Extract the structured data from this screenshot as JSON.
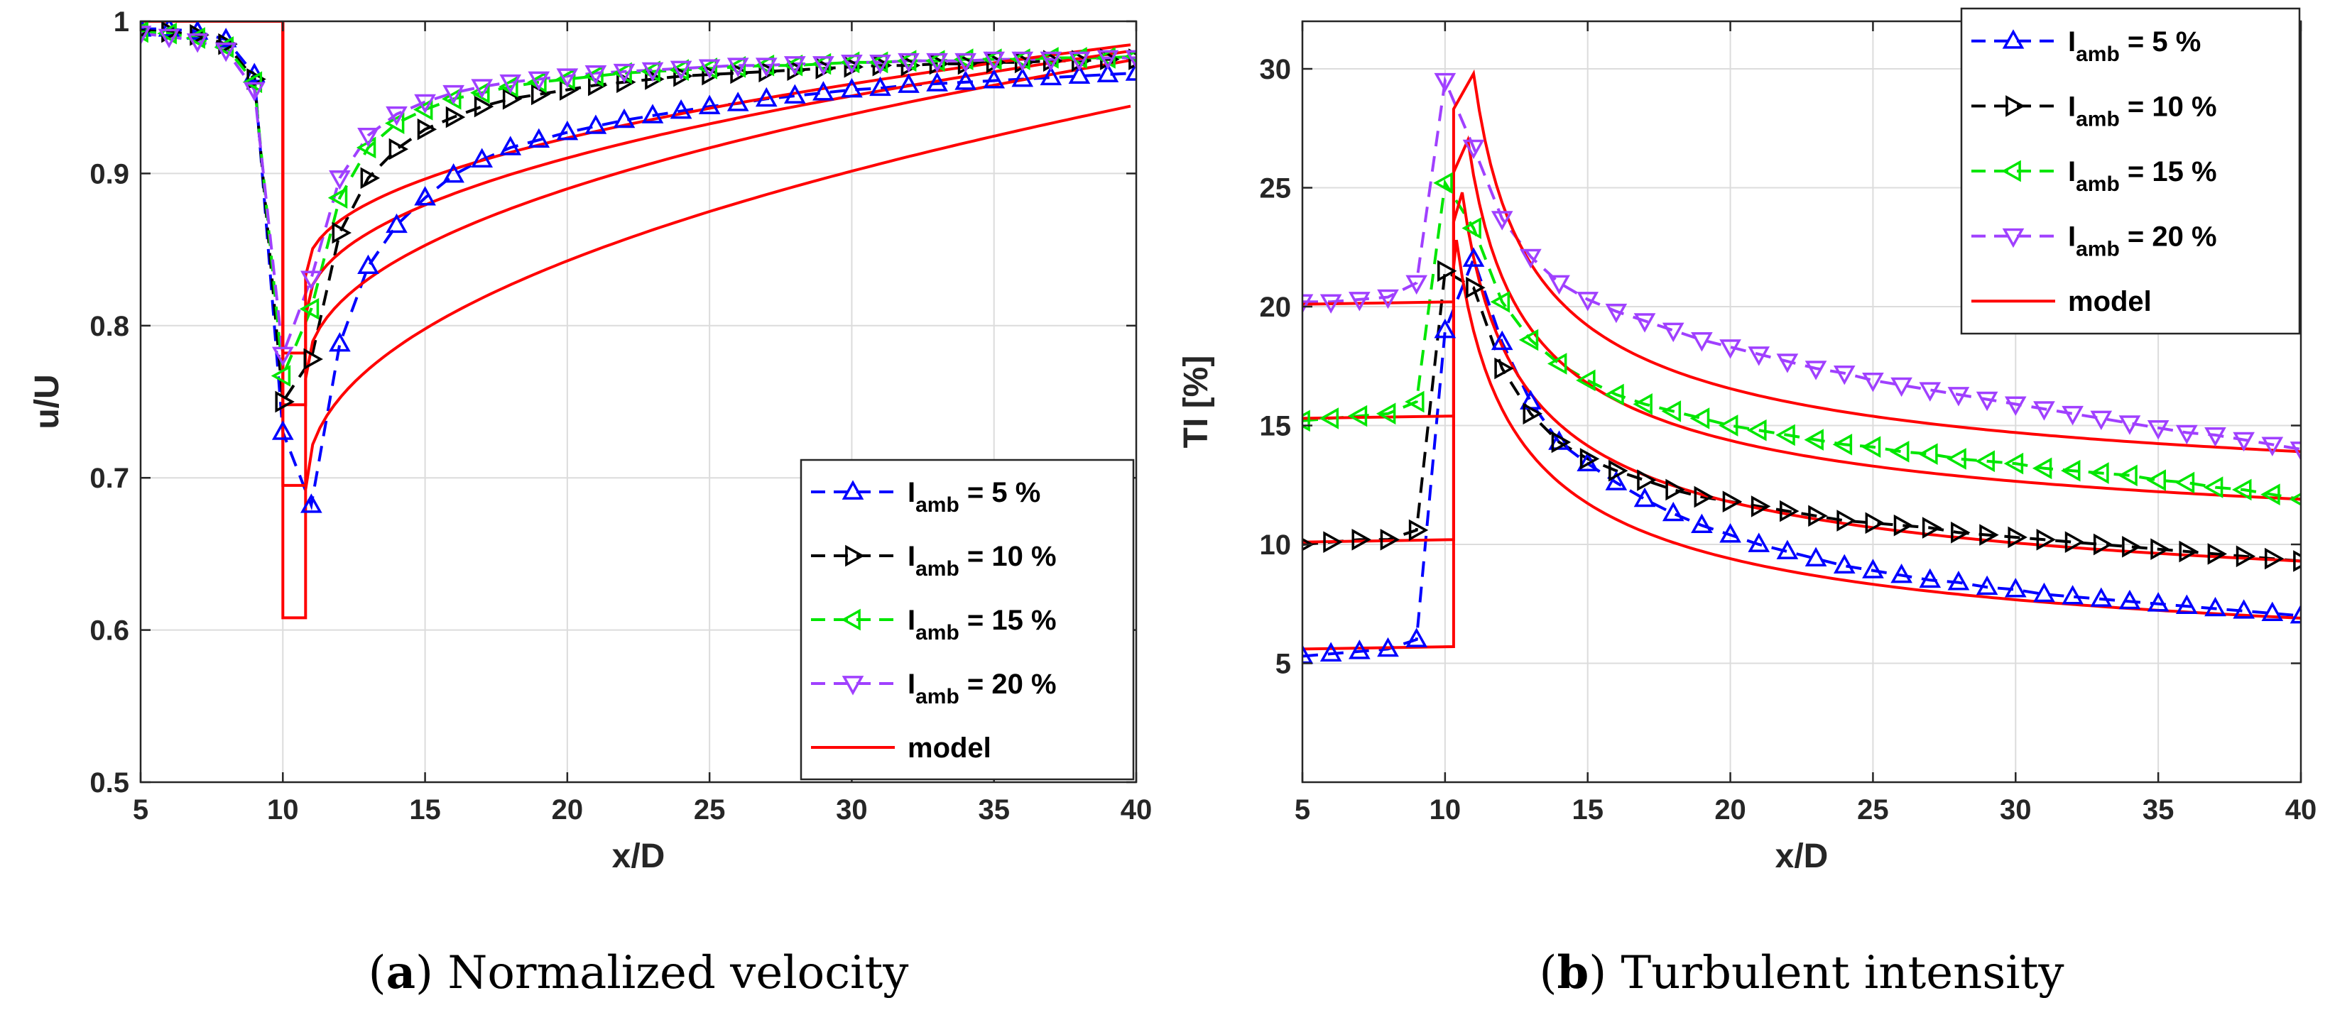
{
  "chart_data": [
    {
      "type": "line",
      "title": "",
      "xlabel": "x/D",
      "ylabel": "u/U",
      "xlim": [
        5,
        40
      ],
      "ylim": [
        0.5,
        1.0
      ],
      "xticks": [
        "5",
        "10",
        "15",
        "20",
        "25",
        "30",
        "35",
        "40"
      ],
      "yticks": [
        "0.5",
        "0.6",
        "0.7",
        "0.8",
        "0.9",
        "1"
      ],
      "grid": true,
      "legend_position": "bottom-right",
      "caption": {
        "letter": "a",
        "text": "Normalized velocity"
      },
      "series": [
        {
          "name": "I_amb = 5 %",
          "legend_main": "I",
          "legend_sub": "amb",
          "legend_rest": " = 5 %",
          "color": "#0000ff",
          "marker": "triangle-up",
          "style": "dashed",
          "x": [
            5,
            6,
            7,
            8,
            9,
            10,
            11,
            12,
            13,
            14,
            15,
            16,
            17,
            18,
            19,
            20,
            21,
            22,
            23,
            24,
            25,
            26,
            27,
            28,
            29,
            30,
            31,
            32,
            33,
            34,
            35,
            36,
            37,
            38,
            39,
            40
          ],
          "y": [
            0.995,
            0.995,
            0.993,
            0.988,
            0.965,
            0.73,
            0.682,
            0.788,
            0.839,
            0.866,
            0.884,
            0.899,
            0.909,
            0.917,
            0.922,
            0.927,
            0.931,
            0.935,
            0.938,
            0.941,
            0.944,
            0.946,
            0.949,
            0.951,
            0.953,
            0.955,
            0.956,
            0.958,
            0.959,
            0.96,
            0.961,
            0.962,
            0.963,
            0.964,
            0.965,
            0.966
          ]
        },
        {
          "name": "I_amb = 10 %",
          "legend_main": "I",
          "legend_sub": "amb",
          "legend_rest": " = 10 %",
          "color": "#000000",
          "marker": "triangle-right",
          "style": "dashed",
          "x": [
            5,
            6,
            7,
            8,
            9,
            10,
            11,
            12,
            13,
            14,
            15,
            16,
            17,
            18,
            19,
            20,
            21,
            22,
            23,
            24,
            25,
            26,
            27,
            28,
            29,
            30,
            31,
            32,
            33,
            34,
            35,
            36,
            37,
            38,
            39,
            40
          ],
          "y": [
            0.994,
            0.993,
            0.991,
            0.985,
            0.962,
            0.75,
            0.778,
            0.861,
            0.897,
            0.916,
            0.929,
            0.937,
            0.944,
            0.949,
            0.952,
            0.955,
            0.958,
            0.96,
            0.962,
            0.964,
            0.965,
            0.966,
            0.967,
            0.968,
            0.969,
            0.97,
            0.971,
            0.971,
            0.972,
            0.972,
            0.973,
            0.973,
            0.974,
            0.974,
            0.975,
            0.975
          ]
        },
        {
          "name": "I_amb = 15 %",
          "legend_main": "I",
          "legend_sub": "amb",
          "legend_rest": " = 15 %",
          "color": "#00e600",
          "marker": "triangle-left",
          "style": "dashed",
          "x": [
            5,
            6,
            7,
            8,
            9,
            10,
            11,
            12,
            13,
            14,
            15,
            16,
            17,
            18,
            19,
            20,
            21,
            22,
            23,
            24,
            25,
            26,
            27,
            28,
            29,
            30,
            31,
            32,
            33,
            34,
            35,
            36,
            37,
            38,
            39,
            40
          ],
          "y": [
            0.993,
            0.992,
            0.989,
            0.983,
            0.96,
            0.767,
            0.811,
            0.884,
            0.917,
            0.933,
            0.942,
            0.949,
            0.953,
            0.957,
            0.96,
            0.962,
            0.964,
            0.966,
            0.967,
            0.968,
            0.969,
            0.97,
            0.971,
            0.971,
            0.972,
            0.973,
            0.973,
            0.974,
            0.974,
            0.975,
            0.975,
            0.975,
            0.976,
            0.976,
            0.976,
            0.977
          ]
        },
        {
          "name": "I_amb = 20 %",
          "legend_main": "I",
          "legend_sub": "amb",
          "legend_rest": " = 20 %",
          "color": "#a040ff",
          "marker": "triangle-down",
          "style": "dashed",
          "x": [
            5,
            6,
            7,
            8,
            9,
            10,
            11,
            12,
            13,
            14,
            15,
            16,
            17,
            18,
            19,
            20,
            21,
            22,
            23,
            24,
            25,
            26,
            27,
            28,
            29,
            30,
            31,
            32,
            33,
            34,
            35,
            36,
            37,
            38,
            39,
            40
          ],
          "y": [
            0.992,
            0.99,
            0.987,
            0.981,
            0.955,
            0.781,
            0.831,
            0.897,
            0.925,
            0.939,
            0.947,
            0.953,
            0.957,
            0.96,
            0.962,
            0.964,
            0.966,
            0.967,
            0.968,
            0.969,
            0.97,
            0.971,
            0.971,
            0.972,
            0.972,
            0.973,
            0.973,
            0.974,
            0.974,
            0.974,
            0.975,
            0.975,
            0.975,
            0.975,
            0.976,
            0.976
          ]
        },
        {
          "name": "model",
          "legend_main": "model",
          "color": "#ff0000",
          "marker": "none",
          "style": "solid",
          "kind": "model",
          "onset": 10.0,
          "width": 0.8,
          "pre": 1.0,
          "min": [
            0.608,
            0.695,
            0.748,
            0.782
          ],
          "far": [
            0.945,
            0.975,
            0.981,
            0.985
          ]
        }
      ]
    },
    {
      "type": "line",
      "title": "",
      "xlabel": "x/D",
      "ylabel": "TI [%]",
      "xlim": [
        5,
        40
      ],
      "ylim": [
        0,
        32
      ],
      "xticks": [
        "5",
        "10",
        "15",
        "20",
        "25",
        "30",
        "35",
        "40"
      ],
      "yticks": [
        "5",
        "10",
        "15",
        "20",
        "25",
        "30"
      ],
      "grid": true,
      "legend_position": "top-right",
      "caption": {
        "letter": "b",
        "text": "Turbulent intensity"
      },
      "series": [
        {
          "name": "I_amb = 5 %",
          "legend_main": "I",
          "legend_sub": "amb",
          "legend_rest": " = 5 %",
          "color": "#0000ff",
          "marker": "triangle-up",
          "style": "dashed",
          "x": [
            5,
            6,
            7,
            8,
            9,
            10,
            11,
            12,
            13,
            14,
            15,
            16,
            17,
            18,
            19,
            20,
            21,
            22,
            23,
            24,
            25,
            26,
            27,
            28,
            29,
            30,
            31,
            32,
            33,
            34,
            35,
            36,
            37,
            38,
            39,
            40
          ],
          "y": [
            5.3,
            5.4,
            5.5,
            5.6,
            6.0,
            19.0,
            22.0,
            18.5,
            16.0,
            14.3,
            13.4,
            12.6,
            11.9,
            11.3,
            10.8,
            10.4,
            10.0,
            9.7,
            9.4,
            9.1,
            8.9,
            8.7,
            8.5,
            8.4,
            8.2,
            8.1,
            7.9,
            7.8,
            7.7,
            7.6,
            7.5,
            7.4,
            7.3,
            7.2,
            7.1,
            7.0
          ]
        },
        {
          "name": "I_amb = 10 %",
          "legend_main": "I",
          "legend_sub": "amb",
          "legend_rest": " = 10 %",
          "color": "#000000",
          "marker": "triangle-right",
          "style": "dashed",
          "x": [
            5,
            6,
            7,
            8,
            9,
            10,
            11,
            12,
            13,
            14,
            15,
            16,
            17,
            18,
            19,
            20,
            21,
            22,
            23,
            24,
            25,
            26,
            27,
            28,
            29,
            30,
            31,
            32,
            33,
            34,
            35,
            36,
            37,
            38,
            39,
            40
          ],
          "y": [
            10.0,
            10.1,
            10.2,
            10.2,
            10.6,
            21.5,
            20.8,
            17.4,
            15.5,
            14.3,
            13.6,
            13.1,
            12.7,
            12.3,
            12.0,
            11.8,
            11.6,
            11.4,
            11.2,
            11.0,
            10.9,
            10.8,
            10.7,
            10.5,
            10.4,
            10.3,
            10.2,
            10.1,
            10.0,
            9.9,
            9.8,
            9.7,
            9.6,
            9.5,
            9.4,
            9.3
          ]
        },
        {
          "name": "I_amb = 15 %",
          "legend_main": "I",
          "legend_sub": "amb",
          "legend_rest": " = 15 %",
          "color": "#00e600",
          "marker": "triangle-left",
          "style": "dashed",
          "x": [
            5,
            6,
            7,
            8,
            9,
            10,
            11,
            12,
            13,
            14,
            15,
            16,
            17,
            18,
            19,
            20,
            21,
            22,
            23,
            24,
            25,
            26,
            27,
            28,
            29,
            30,
            31,
            32,
            33,
            34,
            35,
            36,
            37,
            38,
            39,
            40
          ],
          "y": [
            15.2,
            15.3,
            15.4,
            15.5,
            16.0,
            25.2,
            23.3,
            20.2,
            18.6,
            17.6,
            16.9,
            16.3,
            15.9,
            15.6,
            15.3,
            15.0,
            14.8,
            14.6,
            14.4,
            14.2,
            14.1,
            13.9,
            13.8,
            13.6,
            13.5,
            13.4,
            13.2,
            13.1,
            13.0,
            12.9,
            12.7,
            12.6,
            12.4,
            12.3,
            12.1,
            11.9
          ]
        },
        {
          "name": "I_amb = 20 %",
          "legend_main": "I",
          "legend_sub": "amb",
          "legend_rest": " = 20 %",
          "color": "#a040ff",
          "marker": "triangle-down",
          "style": "dashed",
          "x": [
            5,
            6,
            7,
            8,
            9,
            10,
            11,
            12,
            13,
            14,
            15,
            16,
            17,
            18,
            19,
            20,
            21,
            22,
            23,
            24,
            25,
            26,
            27,
            28,
            29,
            30,
            31,
            32,
            33,
            34,
            35,
            36,
            37,
            38,
            39,
            40
          ],
          "y": [
            20.2,
            20.2,
            20.3,
            20.4,
            21.0,
            29.5,
            26.7,
            23.7,
            22.1,
            21.0,
            20.3,
            19.8,
            19.4,
            19.0,
            18.6,
            18.3,
            18.0,
            17.7,
            17.4,
            17.2,
            16.9,
            16.7,
            16.5,
            16.3,
            16.1,
            15.9,
            15.7,
            15.5,
            15.3,
            15.1,
            14.9,
            14.7,
            14.6,
            14.4,
            14.2,
            14.0
          ]
        },
        {
          "name": "model",
          "legend_main": "model",
          "color": "#ff0000",
          "marker": "none",
          "style": "solid",
          "kind": "model",
          "onset": 10.3,
          "pre": [
            5.6,
            10.1,
            15.3,
            20.1
          ],
          "peak": [
            22.8,
            24.8,
            27.0,
            29.8
          ],
          "end": [
            6.9,
            9.3,
            11.9,
            13.9
          ],
          "peakx": [
            10.4,
            10.6,
            10.8,
            11.0
          ]
        }
      ]
    }
  ]
}
